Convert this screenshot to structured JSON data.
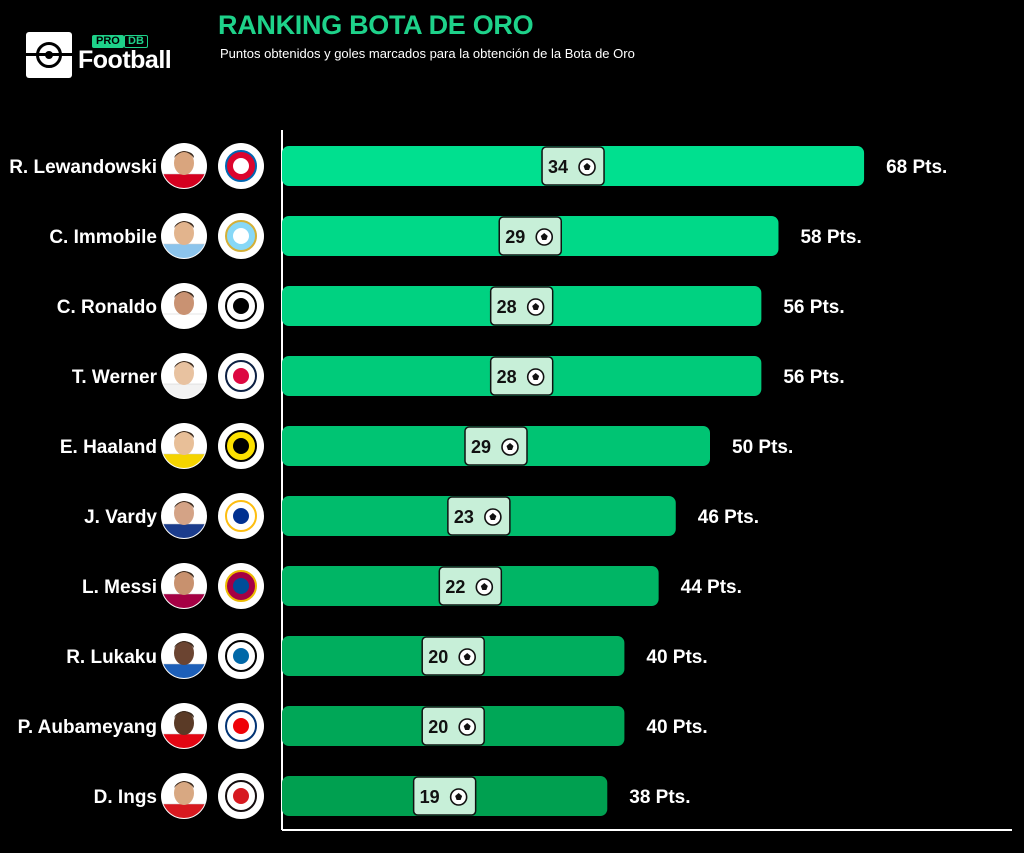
{
  "brand": {
    "pro": "PRO",
    "db": "DB",
    "name": "Football"
  },
  "chart_data": {
    "type": "bar",
    "orientation": "horizontal",
    "title": "RANKING BOTA DE ORO",
    "subtitle": "Puntos obtenidos y goles marcados para la obtención de la Bota de Oro",
    "value_suffix": " Pts.",
    "categories": [
      "R. Lewandowski",
      "C. Immobile",
      "C. Ronaldo",
      "T. Werner",
      "E. Haaland",
      "J. Vardy",
      "L. Messi",
      "R. Lukaku",
      "P. Aubameyang",
      "D. Ings"
    ],
    "series": [
      {
        "name": "Pts.",
        "values": [
          68,
          58,
          56,
          56,
          50,
          46,
          44,
          40,
          40,
          38
        ]
      },
      {
        "name": "Goles",
        "values": [
          34,
          29,
          28,
          28,
          29,
          23,
          22,
          20,
          20,
          19
        ]
      }
    ],
    "clubs": [
      "Bayern München",
      "Lazio",
      "Juventus",
      "RB Leipzig",
      "Borussia Dortmund",
      "Leicester City",
      "FC Barcelona",
      "Inter",
      "Arsenal",
      "Southampton"
    ],
    "colors": {
      "bar_top": "#00e08f",
      "bar_bottom": "#00a050",
      "goal_box": "#c7efd8",
      "accent": "#1ed28a"
    },
    "grid": false,
    "legend": "none"
  }
}
